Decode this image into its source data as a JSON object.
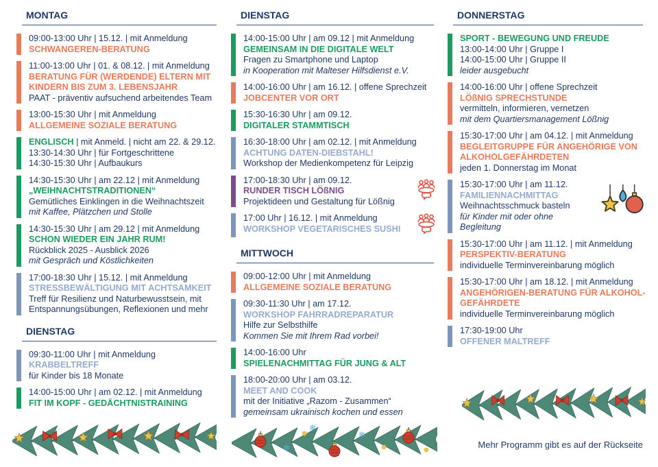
{
  "palette": {
    "navy": "#1F3864",
    "orange": "#E87B5B",
    "green": "#1D9A62",
    "blue_bar": "#7E96B8",
    "blue_title": "#95ABCB",
    "purple": "#7B4E87",
    "fir_green": "#4E8877",
    "fir_dark": "#3A6B5E",
    "ornament_red": "#CE3F2E",
    "ornament_yellow": "#EBC24B",
    "ornament_blue": "#54AEDC",
    "icon_red": "#E2574C"
  },
  "footer_note": "Mehr Programm gibt es auf der Rückseite",
  "columns": [
    {
      "sections": [
        {
          "heading": "MONTAG",
          "entries": [
            {
              "color": "orange",
              "lines": [
                {
                  "kind": "time",
                  "text": "09:00-13:00 Uhr | 15.12. | mit Anmeldung"
                },
                {
                  "kind": "title",
                  "text": "SCHWANGEREN-BERATUNG"
                }
              ]
            },
            {
              "color": "orange",
              "lines": [
                {
                  "kind": "time",
                  "text": "11:00-13:00 Uhr | 01. & 08.12. | mit Anmeldung"
                },
                {
                  "kind": "title",
                  "text": "BERATUNG FÜR (WERDENDE) ELTERN  MIT KINDERN BIS ZUM 3. LEBENSJAHR"
                },
                {
                  "kind": "body",
                  "text": "PAAT - präventiv aufsuchend arbeitendes Team"
                }
              ]
            },
            {
              "color": "orange",
              "lines": [
                {
                  "kind": "time",
                  "text": "13:00-15:30 Uhr | mit Anmeldung"
                },
                {
                  "kind": "title",
                  "text": "ALLGEMEINE SOZIALE BERATUNG"
                }
              ]
            },
            {
              "color": "green",
              "lines": [
                {
                  "kind": "mixed",
                  "parts": [
                    {
                      "kind": "title",
                      "text": "ENGLISCH"
                    },
                    {
                      "kind": "time",
                      "text": " | mit Anmeld. | nicht am 22. & 29.12."
                    }
                  ]
                },
                {
                  "kind": "time",
                  "text": "13:30-14:30 Uhr | für Fortgeschrittene"
                },
                {
                  "kind": "time",
                  "text": "14:30-15:30 Uhr | Aufbaukurs"
                }
              ]
            },
            {
              "color": "green",
              "lines": [
                {
                  "kind": "time",
                  "text": "14:30-15:30 Uhr | am 22.12 | mit Anmeldung"
                },
                {
                  "kind": "title",
                  "text": "„WEIHNACHTSTRADITIONEN“"
                },
                {
                  "kind": "body",
                  "text": "Gemütliches Einklingen in die Weihnachtszeit"
                },
                {
                  "kind": "italic",
                  "text": "mit Kaffee, Plätzchen und Stolle"
                }
              ]
            },
            {
              "color": "green",
              "lines": [
                {
                  "kind": "time",
                  "text": "14:30-15:30 Uhr | am 29.12 | mit Anmeldung"
                },
                {
                  "kind": "title",
                  "text": "SCHON WIEDER EIN JAHR RUM!"
                },
                {
                  "kind": "body",
                  "text": "Rückblick 2025 - Ausblick 2026"
                },
                {
                  "kind": "italic",
                  "text": "mit Gespräch und Köstlichkeiten"
                }
              ]
            },
            {
              "color": "blue",
              "lines": [
                {
                  "kind": "time",
                  "text": "17:00-18:30 Uhr | 15.12. | mit Anmeldung"
                },
                {
                  "kind": "title",
                  "text": "STRESSBEWÄLTIGUNG MIT ACHTSAMKEIT"
                },
                {
                  "kind": "body",
                  "text": "Treff für Resilienz und Naturbewusstsein, mit Entspannungsübungen, Reflexionen und mehr"
                }
              ]
            }
          ]
        },
        {
          "heading": "DIENSTAG",
          "entries": [
            {
              "color": "blue",
              "lines": [
                {
                  "kind": "time",
                  "text": "09:30-11:00 Uhr | mit Anmeldung"
                },
                {
                  "kind": "title",
                  "text": "KRABBELTREFF"
                },
                {
                  "kind": "body",
                  "text": "für Kinder bis 18 Monate"
                }
              ]
            },
            {
              "color": "green",
              "lines": [
                {
                  "kind": "time",
                  "text": "14:00-15:00 Uhr | am 02.12. | mit Anmeldung"
                },
                {
                  "kind": "title",
                  "text": "FIT IM KOPF - GEDÄCHTNISTRAINING"
                }
              ]
            }
          ]
        }
      ],
      "garland": "bows-stars"
    },
    {
      "sections": [
        {
          "heading": "DIENSTAG",
          "entries": [
            {
              "color": "green",
              "lines": [
                {
                  "kind": "time",
                  "text": "14:00-15:00 Uhr | am 09.12 | mit Anmeldung"
                },
                {
                  "kind": "title",
                  "text": "GEMEINSAM IN DIE DIGITALE WELT"
                },
                {
                  "kind": "body",
                  "text": "Fragen zu Smartphone und Laptop"
                },
                {
                  "kind": "italic",
                  "text": "in Kooperation mit Malteser Hilfsdienst e.V."
                }
              ]
            },
            {
              "color": "orange",
              "lines": [
                {
                  "kind": "time",
                  "text": "14:00-16:00 Uhr | am 16.12. | offene Sprechzeit"
                },
                {
                  "kind": "title",
                  "text": "JOBCENTER VOR ORT"
                }
              ]
            },
            {
              "color": "green",
              "lines": [
                {
                  "kind": "time",
                  "text": "15:30-16:30 Uhr | am 09.12."
                },
                {
                  "kind": "title",
                  "text": "DIGITALER STAMMTISCH"
                }
              ]
            },
            {
              "color": "blue",
              "lines": [
                {
                  "kind": "time",
                  "text": "16:30-18:00 Uhr | am 02.12. | mit Anmeldung"
                },
                {
                  "kind": "title",
                  "text": "ACHTUNG DATEN-DIEBSTAHL!"
                },
                {
                  "kind": "body",
                  "text": "Workshop der Medienkompetenz für Leipzig"
                }
              ]
            },
            {
              "color": "purple",
              "icon": "people",
              "lines": [
                {
                  "kind": "time",
                  "text": "17:00-18:30 Uhr | am 09.12."
                },
                {
                  "kind": "title",
                  "text": "RUNDER TISCH LÖßNIG"
                },
                {
                  "kind": "body",
                  "text": "Projektideen und Gestaltung für Lößnig"
                }
              ]
            },
            {
              "color": "blue",
              "icon": "people",
              "lines": [
                {
                  "kind": "time",
                  "text": "17:00 Uhr | 16.12. | mit Anmeldung"
                },
                {
                  "kind": "title",
                  "text": "WORKSHOP VEGETARISCHES SUSHI"
                }
              ]
            }
          ]
        },
        {
          "heading": "MITTWOCH",
          "entries": [
            {
              "color": "orange",
              "lines": [
                {
                  "kind": "time",
                  "text": "09:00-12:00 Uhr | mit Anmeldung"
                },
                {
                  "kind": "title",
                  "text": "ALLGEMEINE SOZIALE BERATUNG"
                }
              ]
            },
            {
              "color": "blue",
              "lines": [
                {
                  "kind": "time",
                  "text": "09:30-11:30 Uhr | am 17.12."
                },
                {
                  "kind": "title",
                  "text": "WORKSHOP FAHRRADREPARATUR"
                },
                {
                  "kind": "body",
                  "text": "Hilfe zur Selbsthilfe"
                },
                {
                  "kind": "italic",
                  "text": "Kommen Sie mit Ihrem Rad vorbei!"
                }
              ]
            },
            {
              "color": "green",
              "lines": [
                {
                  "kind": "time",
                  "text": "14:00-16:00 Uhr"
                },
                {
                  "kind": "title",
                  "text": "SPIELENACHMITTAG FÜR JUNG & ALT"
                }
              ]
            },
            {
              "color": "blue",
              "lines": [
                {
                  "kind": "time",
                  "text": "18:00-20:00 Uhr | am 03.12."
                },
                {
                  "kind": "title",
                  "text": "MEET AND COOK"
                },
                {
                  "kind": "body",
                  "text": "mit der Initiative „Razom - Zusammen“"
                },
                {
                  "kind": "italic",
                  "text": "gemeinsam ukrainisch kochen und essen"
                }
              ]
            }
          ]
        }
      ],
      "garland": "baubles"
    },
    {
      "sections": [
        {
          "heading": "DONNERSTAG",
          "entries": [
            {
              "color": "green",
              "lines": [
                {
                  "kind": "title",
                  "text": "SPORT - BEWEGUNG UND FREUDE"
                },
                {
                  "kind": "time",
                  "text": "13:00-14:00 Uhr | Gruppe I"
                },
                {
                  "kind": "time",
                  "text": "14:00-15:00 Uhr | Gruppe II"
                },
                {
                  "kind": "italic",
                  "text": "leider ausgebucht"
                }
              ]
            },
            {
              "color": "orange",
              "lines": [
                {
                  "kind": "time",
                  "text": "14:00-16:00 Uhr | offene Sprechzeit"
                },
                {
                  "kind": "title",
                  "text": "LÖßNIG SPRECHSTUNDE"
                },
                {
                  "kind": "body",
                  "text": "vermitteln, informieren, vernetzen"
                },
                {
                  "kind": "italic",
                  "text": "mit dem Quartiersmanagement Lößnig"
                }
              ]
            },
            {
              "color": "orange",
              "lines": [
                {
                  "kind": "time",
                  "text": "15:30-17:00 Uhr | am 04.12. | mit Anmeldung"
                },
                {
                  "kind": "title",
                  "text": "BEGLEITGRUPPE FÜR ANGEHÖRIGE VON ALKOHOLGEFÄHRDETEN"
                },
                {
                  "kind": "body",
                  "text": "jeden 1. Donnerstag im Monat"
                }
              ]
            },
            {
              "color": "blue",
              "icon": "ornaments",
              "lines": [
                {
                  "kind": "time",
                  "text": "15:30-17:00 Uhr | am 11.12."
                },
                {
                  "kind": "title",
                  "text": "FAMILIENNACHMITTAG"
                },
                {
                  "kind": "body",
                  "text": "Weihnachtsschmuck basteln"
                },
                {
                  "kind": "italic",
                  "text": "für Kinder mit oder ohne Begleitung"
                }
              ]
            },
            {
              "color": "orange",
              "lines": [
                {
                  "kind": "time",
                  "text": "15:30-17:00 Uhr | am 11.12. | mit Anmeldung"
                },
                {
                  "kind": "title",
                  "text": "PERSPEKTIV-BERATUNG"
                },
                {
                  "kind": "body",
                  "text": "individuelle Terminvereinbarung möglich"
                }
              ]
            },
            {
              "color": "orange",
              "lines": [
                {
                  "kind": "time",
                  "text": "15:30-17:00 Uhr | am 18.12. | mit Anmeldung"
                },
                {
                  "kind": "title",
                  "text": "ANGEHÖRIGEN-BERATUNG FÜR ALKOHOL-GEFÄHRDETE"
                },
                {
                  "kind": "body",
                  "text": "individuelle Terminvereinbarung möglich"
                }
              ]
            },
            {
              "color": "blue",
              "lines": [
                {
                  "kind": "time",
                  "text": "17:30-19:00 Uhr"
                },
                {
                  "kind": "title",
                  "text": "OFFENER MALTREFF"
                }
              ]
            }
          ]
        }
      ],
      "garland": "stars-bows"
    }
  ]
}
